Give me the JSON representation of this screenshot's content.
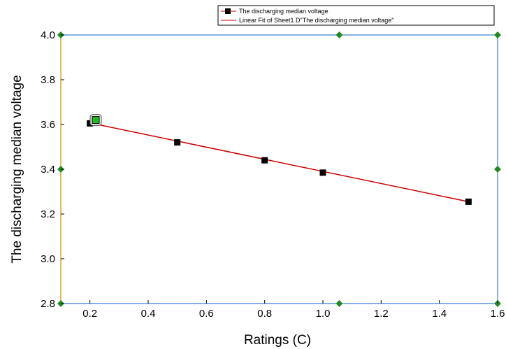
{
  "chart_data": {
    "type": "scatter",
    "xlabel": "Ratings (C)",
    "ylabel": "The discharging median voltage",
    "xlim": [
      0.1,
      1.6
    ],
    "ylim": [
      2.8,
      4.0
    ],
    "x_ticks": [
      "0.2",
      "0.4",
      "0.6",
      "0.8",
      "1.0",
      "1.2",
      "1.4",
      "1.6"
    ],
    "y_ticks": [
      "2.8",
      "3.0",
      "3.2",
      "3.4",
      "3.6",
      "3.8",
      "4.0"
    ],
    "grid": false,
    "legend_position": "top-right",
    "series": [
      {
        "name": "The discharging median voltage",
        "kind": "scatter",
        "marker": "square",
        "color": "#000000",
        "x": [
          0.2,
          0.5,
          0.8,
          1.0,
          1.5
        ],
        "y": [
          3.605,
          3.52,
          3.44,
          3.385,
          3.255
        ]
      },
      {
        "name": "Linear Fit of Sheet1 D\"The discharging median voltage\"",
        "kind": "line",
        "color": "#cc0000",
        "x": [
          0.2,
          1.5
        ],
        "y": [
          3.607,
          3.255
        ]
      }
    ],
    "highlight_point": {
      "x": 0.22,
      "y": 3.62,
      "color": "#22bb22"
    },
    "colors": {
      "frame_left": "#d4a017",
      "frame_other": "#3a7fd5",
      "handle": "#1e8c1e"
    }
  }
}
